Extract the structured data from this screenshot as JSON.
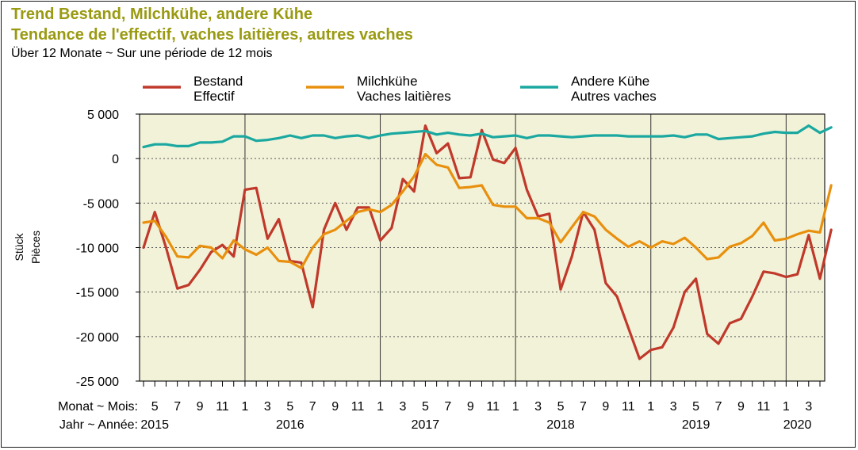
{
  "title_line1": "Trend Bestand, Milchkühe, andere Kühe",
  "title_line2": "Tendance de l'effectif, vaches laitières, autres vaches",
  "subtitle": "Über 12 Monate   ~   Sur une période de 12 mois",
  "colors": {
    "title": "#9a9a12",
    "plot_bg": "#f2f2d8",
    "grid": "#5a5a5a"
  },
  "chart_data": {
    "type": "line",
    "ylabel_de": "Stück",
    "ylabel_fr": "Pièces",
    "x_row1_label": "Monat ~ Mois:",
    "x_row2_label": "Jahr ~ Année:",
    "ylim": [
      -25000,
      5000
    ],
    "yticks": [
      5000,
      0,
      -5000,
      -10000,
      -15000,
      -20000,
      -25000
    ],
    "ytick_labels": [
      "5 000",
      "0",
      "-5 000",
      "-10 000",
      "-15 000",
      "-20 000",
      "-25 000"
    ],
    "x_start": "2015-04",
    "x_end": "2020-04",
    "month_tick_labels": [
      {
        "month": "2015-05",
        "label": "5"
      },
      {
        "month": "2015-07",
        "label": "7"
      },
      {
        "month": "2015-09",
        "label": "9"
      },
      {
        "month": "2015-11",
        "label": "11"
      },
      {
        "month": "2016-01",
        "label": "1"
      },
      {
        "month": "2016-03",
        "label": "3"
      },
      {
        "month": "2016-05",
        "label": "5"
      },
      {
        "month": "2016-07",
        "label": "7"
      },
      {
        "month": "2016-09",
        "label": "9"
      },
      {
        "month": "2016-11",
        "label": "11"
      },
      {
        "month": "2017-01",
        "label": "1"
      },
      {
        "month": "2017-03",
        "label": "3"
      },
      {
        "month": "2017-05",
        "label": "5"
      },
      {
        "month": "2017-07",
        "label": "7"
      },
      {
        "month": "2017-09",
        "label": "9"
      },
      {
        "month": "2017-11",
        "label": "11"
      },
      {
        "month": "2018-01",
        "label": "1"
      },
      {
        "month": "2018-03",
        "label": "3"
      },
      {
        "month": "2018-05",
        "label": "5"
      },
      {
        "month": "2018-07",
        "label": "7"
      },
      {
        "month": "2018-09",
        "label": "9"
      },
      {
        "month": "2018-11",
        "label": "11"
      },
      {
        "month": "2019-01",
        "label": "1"
      },
      {
        "month": "2019-03",
        "label": "3"
      },
      {
        "month": "2019-05",
        "label": "5"
      },
      {
        "month": "2019-07",
        "label": "7"
      },
      {
        "month": "2019-09",
        "label": "9"
      },
      {
        "month": "2019-11",
        "label": "11"
      },
      {
        "month": "2020-01",
        "label": "1"
      },
      {
        "month": "2020-03",
        "label": "3"
      }
    ],
    "year_labels": [
      {
        "month": "2015-05",
        "label": "2015"
      },
      {
        "month": "2016-05",
        "label": "2016"
      },
      {
        "month": "2017-05",
        "label": "2017"
      },
      {
        "month": "2018-05",
        "label": "2018"
      },
      {
        "month": "2019-05",
        "label": "2019"
      },
      {
        "month": "2020-02",
        "label": "2020"
      }
    ],
    "year_boundaries": [
      "2016-01",
      "2017-01",
      "2018-01",
      "2019-01",
      "2020-01"
    ],
    "grid": true,
    "legend_position": "top",
    "series": [
      {
        "name_de": "Bestand",
        "name_fr": "Effectif",
        "color": "#c0392b",
        "values": [
          -10000,
          -6000,
          -10000,
          -14600,
          -14200,
          -12500,
          -10500,
          -9700,
          -11000,
          -3500,
          -3300,
          -9000,
          -6800,
          -11500,
          -11700,
          -16700,
          -8000,
          -5000,
          -8000,
          -5500,
          -5500,
          -9200,
          -7800,
          -2300,
          -3700,
          3700,
          600,
          1700,
          -2200,
          -2100,
          3200,
          -100,
          -500,
          1200,
          -3500,
          -6500,
          -6200,
          -14700,
          -11000,
          -6000,
          -8000,
          -14000,
          -15500,
          -19000,
          -22500,
          -21500,
          -21200,
          -19000,
          -15000,
          -13500,
          -19700,
          -20800,
          -18500,
          -18000,
          -15500,
          -12700,
          -12900,
          -13300,
          -13000,
          -8600,
          -13500,
          -8000
        ]
      },
      {
        "name_de": "Milchkühe",
        "name_fr": "Vaches laitières",
        "color": "#e8900e",
        "values": [
          -7200,
          -7000,
          -8800,
          -11000,
          -11100,
          -9800,
          -10000,
          -11200,
          -9200,
          -10200,
          -10800,
          -10000,
          -11500,
          -11600,
          -12300,
          -10000,
          -8500,
          -8000,
          -7000,
          -6000,
          -5700,
          -6000,
          -5200,
          -3700,
          -2000,
          500,
          -700,
          -1000,
          -3300,
          -3200,
          -3000,
          -5200,
          -5400,
          -5400,
          -6700,
          -6700,
          -7200,
          -9400,
          -7700,
          -6000,
          -6500,
          -8000,
          -9000,
          -9900,
          -9300,
          -10000,
          -9300,
          -9600,
          -8900,
          -10000,
          -11300,
          -11100,
          -9900,
          -9500,
          -8700,
          -7200,
          -9200,
          -9000,
          -8500,
          -8100,
          -8300,
          -3000
        ]
      },
      {
        "name_de": "Andere Kühe",
        "name_fr": "Autres vaches",
        "color": "#1aa8a0",
        "values": [
          1300,
          1600,
          1600,
          1400,
          1400,
          1800,
          1800,
          1900,
          2500,
          2500,
          2000,
          2100,
          2300,
          2600,
          2300,
          2600,
          2600,
          2300,
          2500,
          2600,
          2300,
          2600,
          2800,
          2900,
          3000,
          3100,
          2700,
          2900,
          2700,
          2600,
          2800,
          2400,
          2500,
          2600,
          2300,
          2600,
          2600,
          2500,
          2400,
          2500,
          2600,
          2600,
          2600,
          2500,
          2500,
          2500,
          2500,
          2600,
          2400,
          2700,
          2700,
          2200,
          2300,
          2400,
          2500,
          2800,
          3000,
          2900,
          2900,
          3700,
          2900,
          3500
        ]
      }
    ]
  }
}
